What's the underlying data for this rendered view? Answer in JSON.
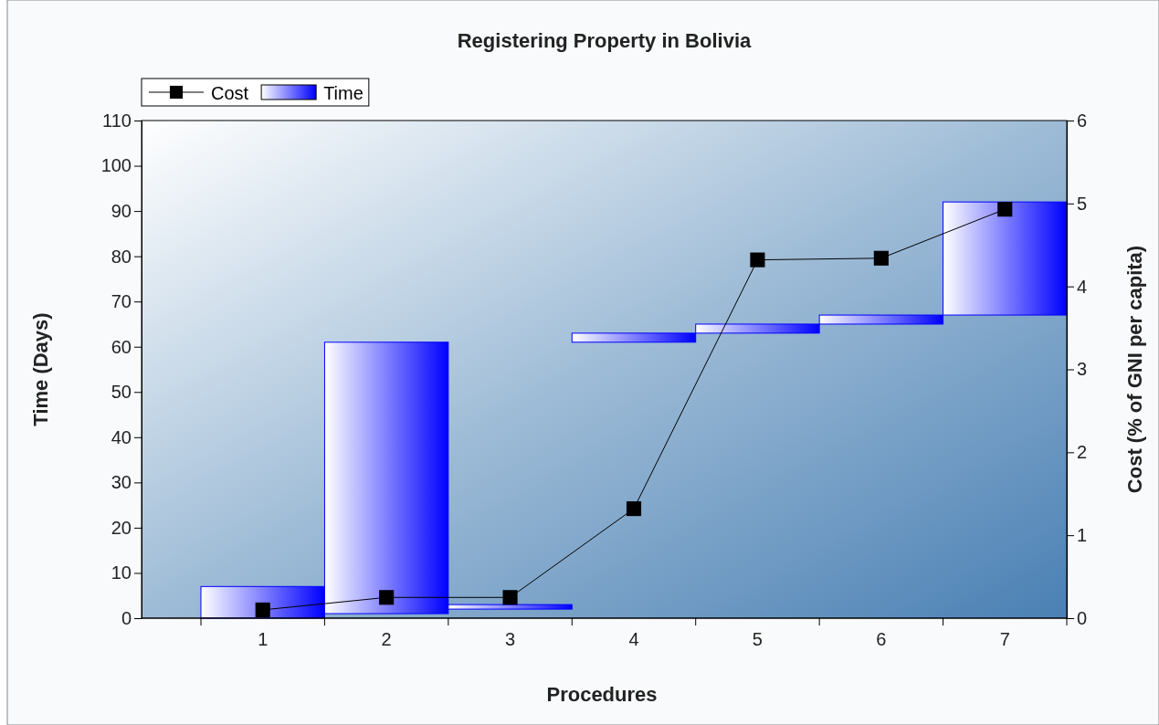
{
  "chart_data": {
    "type": "bar",
    "title": "Registering Property in Bolivia",
    "xlabel": "Procedures",
    "ylabel": "Time (Days)",
    "y2label": "Cost (% of GNI per capita)",
    "categories": [
      "1",
      "2",
      "3",
      "4",
      "5",
      "6",
      "7"
    ],
    "series": [
      {
        "name": "Cost",
        "type": "line",
        "axis": "y2",
        "color": "#000000",
        "marker": "square",
        "values": [
          0.1,
          0.25,
          0.25,
          1.32,
          4.32,
          4.34,
          4.93
        ]
      },
      {
        "name": "Time",
        "color": "#0000ff",
        "base": [
          0,
          1,
          2,
          61,
          63,
          65,
          67
        ],
        "values": [
          7,
          60,
          1,
          2,
          2,
          2,
          25
        ]
      }
    ],
    "ylim": [
      0,
      110
    ],
    "yticks": [
      0,
      10,
      20,
      30,
      40,
      50,
      60,
      70,
      80,
      90,
      100,
      110
    ],
    "y2lim": [
      0,
      6
    ],
    "y2ticks": [
      0,
      1,
      2,
      3,
      4,
      5,
      6
    ],
    "legend": "top left",
    "grid": false
  }
}
